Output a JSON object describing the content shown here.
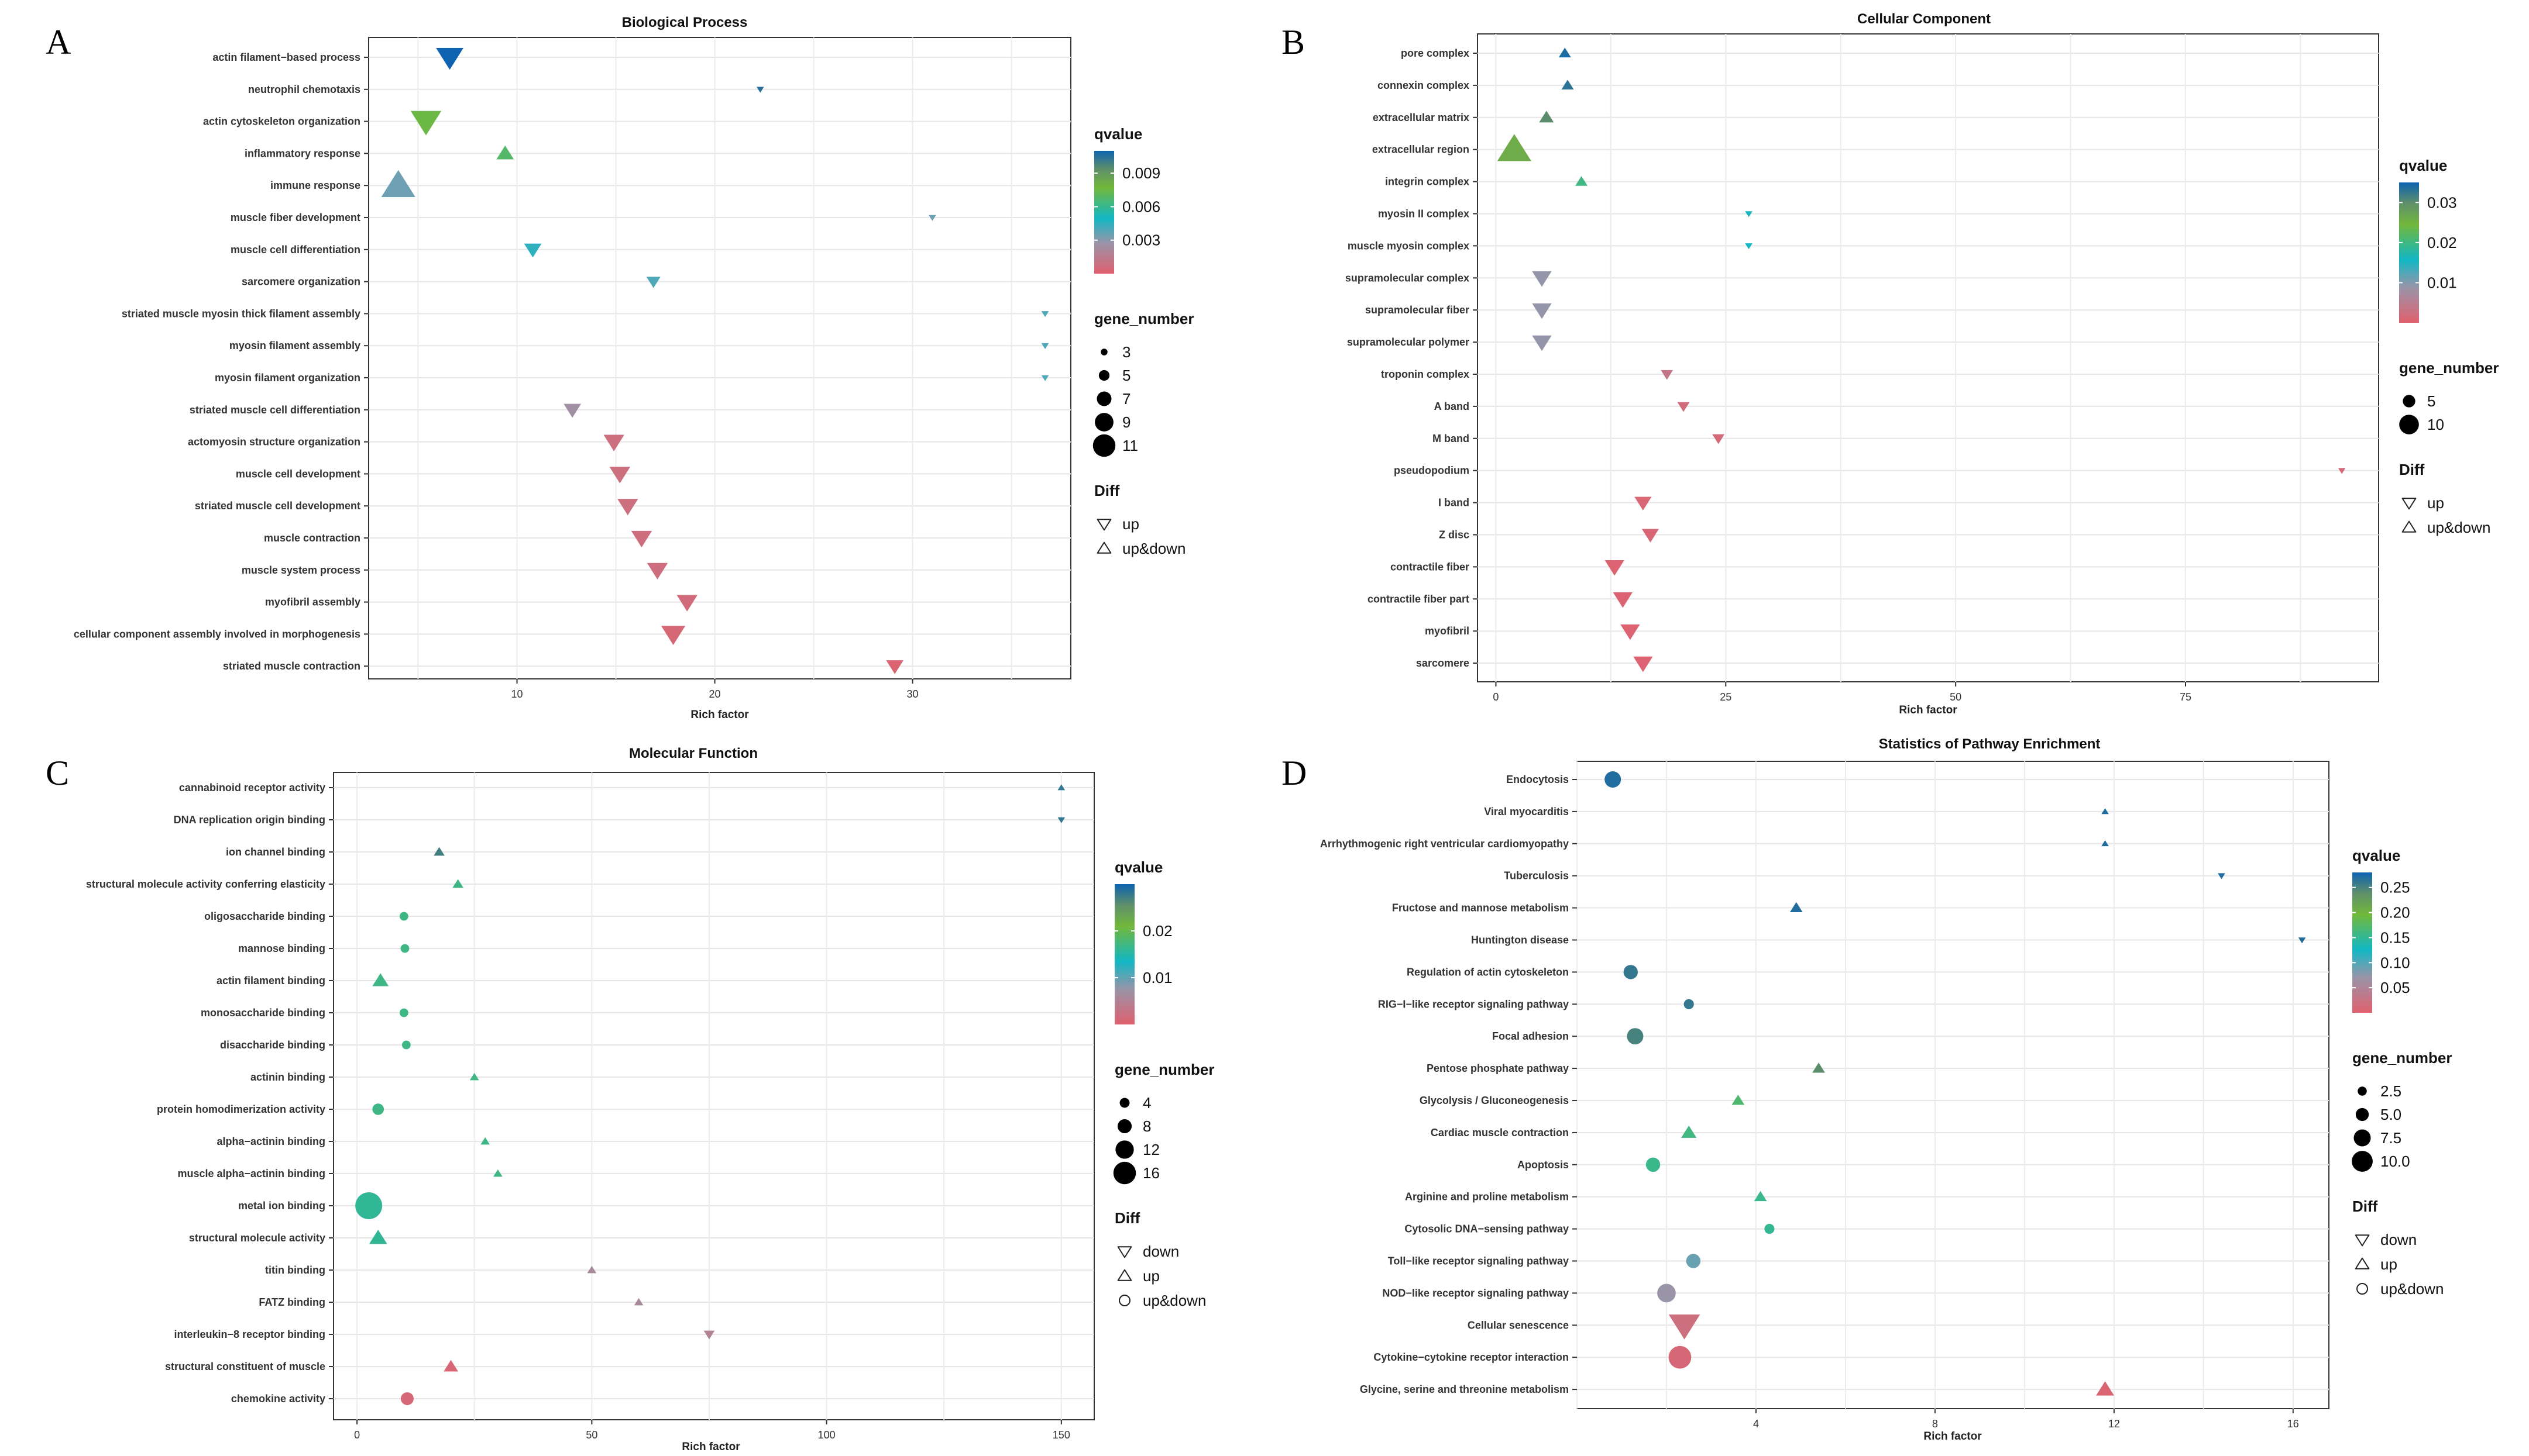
{
  "chart_data": [
    {
      "panel": "A",
      "type": "scatter",
      "title": "Biological Process",
      "xlabel": "Rich factor",
      "xlim": [
        2.5,
        38.0
      ],
      "xticks": [
        10,
        20,
        30
      ],
      "color_range": [
        0,
        0.011
      ],
      "color_ticks": [
        0.003,
        0.006,
        0.009
      ],
      "size_ticks": [
        3,
        5,
        7,
        9,
        11
      ],
      "size_range": [
        3,
        11
      ],
      "legend": {
        "color_title": "qvalue",
        "color_labels": [
          "0.003",
          "0.006",
          "0.009"
        ],
        "size_title": "gene_number",
        "size_labels": [
          "3",
          "5",
          "7",
          "9",
          "11"
        ],
        "shape_title": "Diff",
        "shape_labels": [
          "up",
          "up&down"
        ],
        "shape_keys": [
          "down",
          "up"
        ]
      },
      "terms": [
        "actin filament−based process",
        "neutrophil chemotaxis",
        "actin cytoskeleton organization",
        "inflammatory response",
        "immune response",
        "muscle fiber development",
        "muscle cell differentiation",
        "sarcomere organization",
        "striated muscle myosin thick filament assembly",
        "myosin filament assembly",
        "myosin filament organization",
        "striated muscle cell differentiation",
        "actomyosin structure organization",
        "muscle cell development",
        "striated muscle cell development",
        "muscle contraction",
        "muscle system process",
        "myofibril assembly",
        "cellular component assembly involved in morphogenesis",
        "striated muscle contraction"
      ],
      "rich_factor": [
        6.6,
        22.3,
        5.4,
        9.4,
        4.0,
        31.0,
        10.8,
        16.9,
        36.7,
        36.7,
        36.7,
        12.8,
        14.9,
        15.2,
        15.6,
        16.3,
        17.1,
        18.6,
        17.9,
        29.1
      ],
      "gene_number": [
        9,
        3,
        10,
        6,
        11,
        3,
        6,
        5,
        3,
        3,
        3,
        6,
        7,
        7,
        7,
        7,
        7,
        7,
        8,
        6
      ],
      "qvalue": [
        0.011,
        0.0105,
        0.0075,
        0.0068,
        0.0035,
        0.0035,
        0.0045,
        0.004,
        0.004,
        0.004,
        0.004,
        0.0025,
        0.0008,
        0.0008,
        0.0008,
        0.0007,
        0.0007,
        0.0006,
        0.0004,
        0.0002
      ],
      "shape": [
        "down",
        "down",
        "down",
        "up",
        "up",
        "down",
        "down",
        "down",
        "down",
        "down",
        "down",
        "down",
        "down",
        "down",
        "down",
        "down",
        "down",
        "down",
        "down",
        "down"
      ]
    },
    {
      "panel": "B",
      "type": "scatter",
      "title": "Cellular Component",
      "xlabel": "Rich factor",
      "xlim": [
        -2,
        96
      ],
      "xticks": [
        0,
        25,
        50,
        75
      ],
      "color_range": [
        0,
        0.035
      ],
      "color_ticks": [
        0.01,
        0.02,
        0.03
      ],
      "size_ticks": [
        5,
        10
      ],
      "size_range": [
        1,
        12
      ],
      "legend": {
        "color_title": "qvalue",
        "color_labels": [
          "0.01",
          "0.02",
          "0.03"
        ],
        "size_title": "gene_number",
        "size_labels": [
          "5",
          "10"
        ],
        "shape_title": "Diff",
        "shape_labels": [
          "up",
          "up&down"
        ],
        "shape_keys": [
          "down",
          "up"
        ]
      },
      "terms": [
        "pore complex",
        "connexin complex",
        "extracellular matrix",
        "extracellular region",
        "integrin complex",
        "myosin II complex",
        "muscle myosin complex",
        "supramolecular complex",
        "supramolecular fiber",
        "supramolecular polymer",
        "troponin complex",
        "A band",
        "M band",
        "pseudopodium",
        "I band",
        "Z disc",
        "contractile fiber",
        "contractile fiber part",
        "myofibril",
        "sarcomere"
      ],
      "rich_factor": [
        7.5,
        7.8,
        5.5,
        2.0,
        9.3,
        27.5,
        27.5,
        5.0,
        5.0,
        5.0,
        18.6,
        20.4,
        24.2,
        92.0,
        16.0,
        16.8,
        12.9,
        13.8,
        14.6,
        16.0
      ],
      "gene_number": [
        3,
        3,
        4,
        12,
        3,
        1,
        1,
        6,
        6,
        6,
        3,
        3,
        3,
        1,
        5,
        5,
        6,
        6,
        6,
        6
      ],
      "qvalue": [
        0.034,
        0.033,
        0.03,
        0.026,
        0.02,
        0.016,
        0.016,
        0.009,
        0.009,
        0.009,
        0.0035,
        0.002,
        0.0015,
        0.0015,
        0.001,
        0.001,
        0.0005,
        0.0005,
        0.0005,
        0.0005
      ],
      "shape": [
        "up",
        "up",
        "up",
        "up",
        "up",
        "down",
        "down",
        "down",
        "down",
        "down",
        "down",
        "down",
        "down",
        "down",
        "down",
        "down",
        "down",
        "down",
        "down",
        "down"
      ]
    },
    {
      "panel": "C",
      "type": "scatter",
      "title": "Molecular Function",
      "xlabel": "Rich factor",
      "xlim": [
        -5,
        157
      ],
      "xticks": [
        0,
        50,
        100,
        150
      ],
      "color_range": [
        0,
        0.03
      ],
      "color_ticks": [
        0.01,
        0.02
      ],
      "size_ticks": [
        4,
        8,
        12,
        16
      ],
      "size_range": [
        1,
        16
      ],
      "legend": {
        "color_title": "qvalue",
        "color_labels": [
          "0.01",
          "0.02"
        ],
        "size_title": "gene_number",
        "size_labels": [
          "4",
          "8",
          "12",
          "16"
        ],
        "shape_title": "Diff",
        "shape_labels": [
          "down",
          "up",
          "up&down"
        ],
        "shape_keys": [
          "down",
          "up",
          "circle"
        ]
      },
      "terms": [
        "cannabinoid receptor activity",
        "DNA replication origin binding",
        "ion channel binding",
        "structural molecule activity conferring elasticity",
        "oligosaccharide binding",
        "mannose binding",
        "actin filament binding",
        "monosaccharide binding",
        "disaccharide binding",
        "actinin binding",
        "protein homodimerization activity",
        "alpha−actinin binding",
        "muscle alpha−actinin binding",
        "metal ion binding",
        "structural molecule activity",
        "titin binding",
        "FATZ binding",
        "interleukin−8 receptor binding",
        "structural constituent of muscle",
        "chemokine activity"
      ],
      "rich_factor": [
        150,
        150,
        17.5,
        21.5,
        10,
        10.2,
        5,
        10,
        10.5,
        25,
        4.5,
        27.3,
        30.0,
        2.5,
        4.5,
        50,
        60,
        75,
        20,
        10.7
      ],
      "gene_number": [
        1,
        1,
        3,
        3,
        3,
        3,
        6,
        3,
        3,
        2,
        5,
        2,
        2,
        16,
        7,
        2,
        2,
        3,
        5,
        6
      ],
      "qvalue": [
        0.028,
        0.028,
        0.027,
        0.017,
        0.017,
        0.017,
        0.017,
        0.017,
        0.017,
        0.017,
        0.017,
        0.017,
        0.017,
        0.016,
        0.016,
        0.006,
        0.006,
        0.005,
        0.001,
        0.001
      ],
      "shape": [
        "up",
        "down",
        "up",
        "up",
        "circle",
        "circle",
        "up",
        "circle",
        "circle",
        "up",
        "circle",
        "up",
        "up",
        "circle",
        "up",
        "up",
        "up",
        "down",
        "up",
        "circle"
      ]
    },
    {
      "panel": "D",
      "type": "scatter",
      "title": "Statistics of Pathway Enrichment",
      "xlabel": "Rich factor",
      "xlim": [
        0,
        16.8
      ],
      "xticks": [
        4,
        8,
        12,
        16
      ],
      "color_range": [
        0,
        0.28
      ],
      "color_ticks": [
        0.05,
        0.1,
        0.15,
        0.2,
        0.25
      ],
      "size_ticks": [
        2.5,
        5.0,
        7.5,
        10.0
      ],
      "size_range": [
        1,
        11
      ],
      "legend": {
        "color_title": "qvalue",
        "color_labels": [
          "0.05",
          "0.10",
          "0.15",
          "0.20",
          "0.25"
        ],
        "size_title": "gene_number",
        "size_labels": [
          "2.5",
          "5.0",
          "7.5",
          "10.0"
        ],
        "shape_title": "Diff",
        "shape_labels": [
          "down",
          "up",
          "up&down"
        ],
        "shape_keys": [
          "down",
          "up",
          "circle"
        ]
      },
      "terms": [
        "Endocytosis",
        "Viral myocarditis",
        "Arrhythmogenic right ventricular cardiomyopathy",
        "Tuberculosis",
        "Fructose and mannose metabolism",
        "Huntington disease",
        "Regulation of actin cytoskeleton",
        "RIG−I−like receptor signaling pathway",
        "Focal adhesion",
        "Pentose phosphate pathway",
        "Glycolysis / Gluconeogenesis",
        "Cardiac muscle contraction",
        "Apoptosis",
        "Arginine and proline metabolism",
        "Cytosolic DNA−sensing pathway",
        "Toll−like receptor signaling pathway",
        "NOD−like receptor signaling pathway",
        "Cellular senescence",
        "Cytokine−cytokine receptor interaction",
        "Glycine, serine and threonine metabolism"
      ],
      "rich_factor": [
        0.8,
        11.8,
        11.8,
        14.4,
        4.9,
        16.2,
        1.2,
        2.5,
        1.3,
        5.4,
        3.6,
        2.5,
        1.7,
        4.1,
        4.3,
        2.6,
        2.0,
        2.4,
        2.3,
        11.8
      ],
      "gene_number": [
        6,
        1,
        1,
        1,
        3,
        1,
        5,
        3,
        6,
        3,
        3,
        4,
        5,
        3,
        3,
        5,
        7,
        10,
        9,
        5
      ],
      "qvalue": [
        0.27,
        0.27,
        0.27,
        0.27,
        0.27,
        0.27,
        0.26,
        0.26,
        0.25,
        0.24,
        0.17,
        0.16,
        0.155,
        0.155,
        0.15,
        0.09,
        0.07,
        0.02,
        0.01,
        0.005
      ],
      "shape": [
        "circle",
        "up",
        "up",
        "down",
        "up",
        "down",
        "circle",
        "circle",
        "circle",
        "up",
        "up",
        "up",
        "circle",
        "up",
        "circle",
        "circle",
        "circle",
        "down",
        "circle",
        "up"
      ]
    }
  ]
}
